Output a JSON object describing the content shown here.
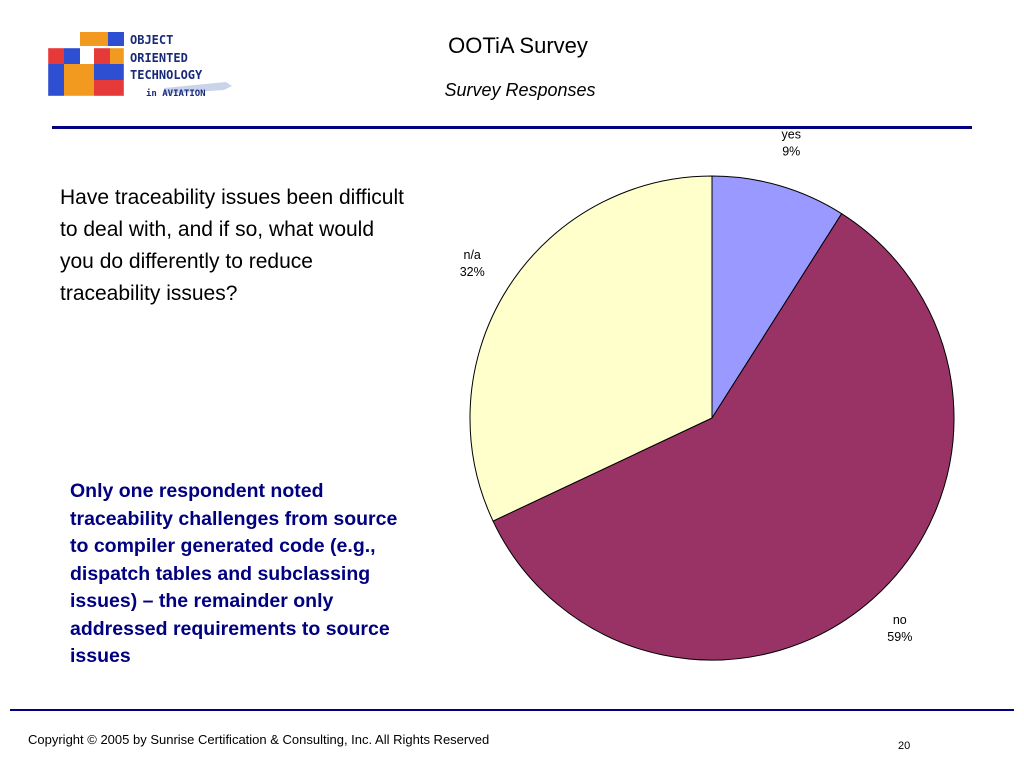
{
  "logo": {
    "lines": [
      "OBJECT",
      "ORIENTED",
      "TECHNOLOGY",
      "in AVIATION"
    ],
    "colors": {
      "orange": "#f29a1f",
      "red": "#e63a3a",
      "blue": "#2e4fd1",
      "navy": "#1a2a7a"
    }
  },
  "header": {
    "title": "OOTiA Survey",
    "subtitle": "Survey Responses"
  },
  "question": "Have traceability issues been difficult to deal with, and if so, what would you do differently to reduce traceability issues?",
  "finding": "Only one respondent noted traceability challenges from source to compiler generated code (e.g., dispatch tables and subclassing issues) – the remainder only addressed requirements to source issues",
  "chart_data": {
    "type": "pie",
    "slices": [
      {
        "label": "yes",
        "value": 9,
        "value_label": "9%",
        "color": "#9999ff"
      },
      {
        "label": "no",
        "value": 59,
        "value_label": "59%",
        "color": "#993366"
      },
      {
        "label": "n/a",
        "value": 32,
        "value_label": "32%",
        "color": "#ffffcc"
      }
    ]
  },
  "footer": {
    "copyright": "Copyright © 2005 by Sunrise Certification & Consulting, Inc.  All Rights Reserved",
    "page_number": "20"
  },
  "colors": {
    "accent": "#000080"
  }
}
